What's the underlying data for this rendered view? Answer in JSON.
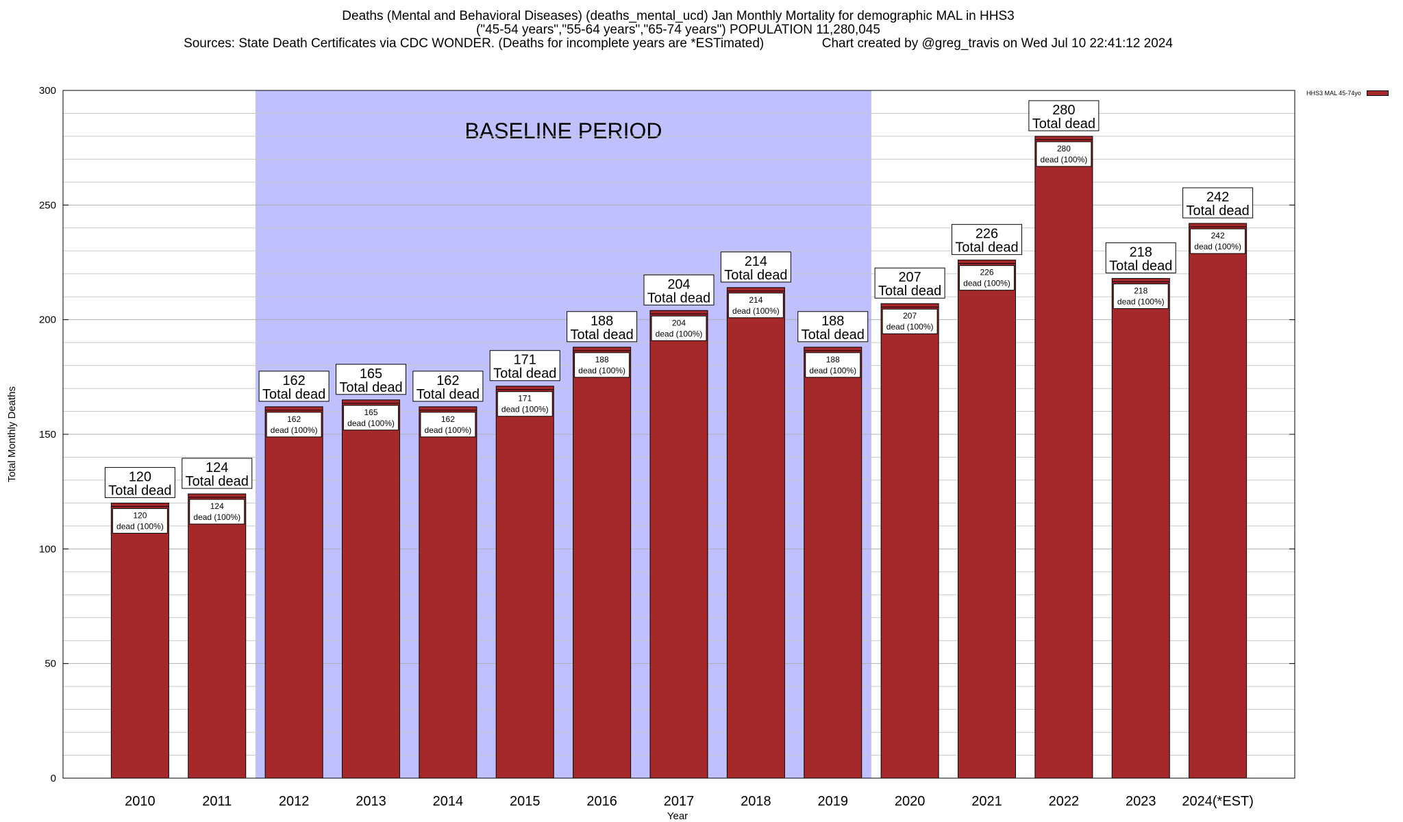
{
  "title": {
    "line1": "Deaths (Mental and Behavioral Diseases) (deaths_mental_ucd) Jan Monthly Mortality for demographic MAL in HHS3",
    "line2": "(\"45-54 years\",\"55-64 years\",\"65-74 years\") POPULATION 11,280,045",
    "line3_left": "Sources: State Death Certificates via CDC WONDER. (Deaths for incomplete years are *ESTimated)",
    "line3_right": "Chart created by @greg_travis on Wed Jul 10 22:41:12 2024"
  },
  "legend": {
    "label": "HHS3 MAL 45-74yo",
    "position": "top-right"
  },
  "colors": {
    "bar": "#a5292a",
    "baseline": "#c0c0ff",
    "grid": "#c8c8c8"
  },
  "chart_data": {
    "type": "bar",
    "categories": [
      "2010",
      "2011",
      "2012",
      "2013",
      "2014",
      "2015",
      "2016",
      "2017",
      "2018",
      "2019",
      "2020",
      "2021",
      "2022",
      "2023",
      "2024(*EST)"
    ],
    "values": [
      120,
      124,
      162,
      165,
      162,
      171,
      188,
      204,
      214,
      188,
      207,
      226,
      280,
      218,
      242
    ],
    "series": [
      {
        "name": "HHS3 MAL 45-74yo",
        "values": [
          120,
          124,
          162,
          165,
          162,
          171,
          188,
          204,
          214,
          188,
          207,
          226,
          280,
          218,
          242
        ]
      }
    ],
    "total_label": "Total dead",
    "inner_label": "dead (100%)",
    "xlabel": "Year",
    "ylabel": "Total Monthly Deaths",
    "ylim": [
      0,
      300
    ],
    "yticks": [
      0,
      50,
      100,
      150,
      200,
      250,
      300
    ],
    "minor_grid_step": 10,
    "grid": true,
    "baseline_period": {
      "label": "BASELINE PERIOD",
      "from": "2012",
      "to": "2019"
    }
  }
}
